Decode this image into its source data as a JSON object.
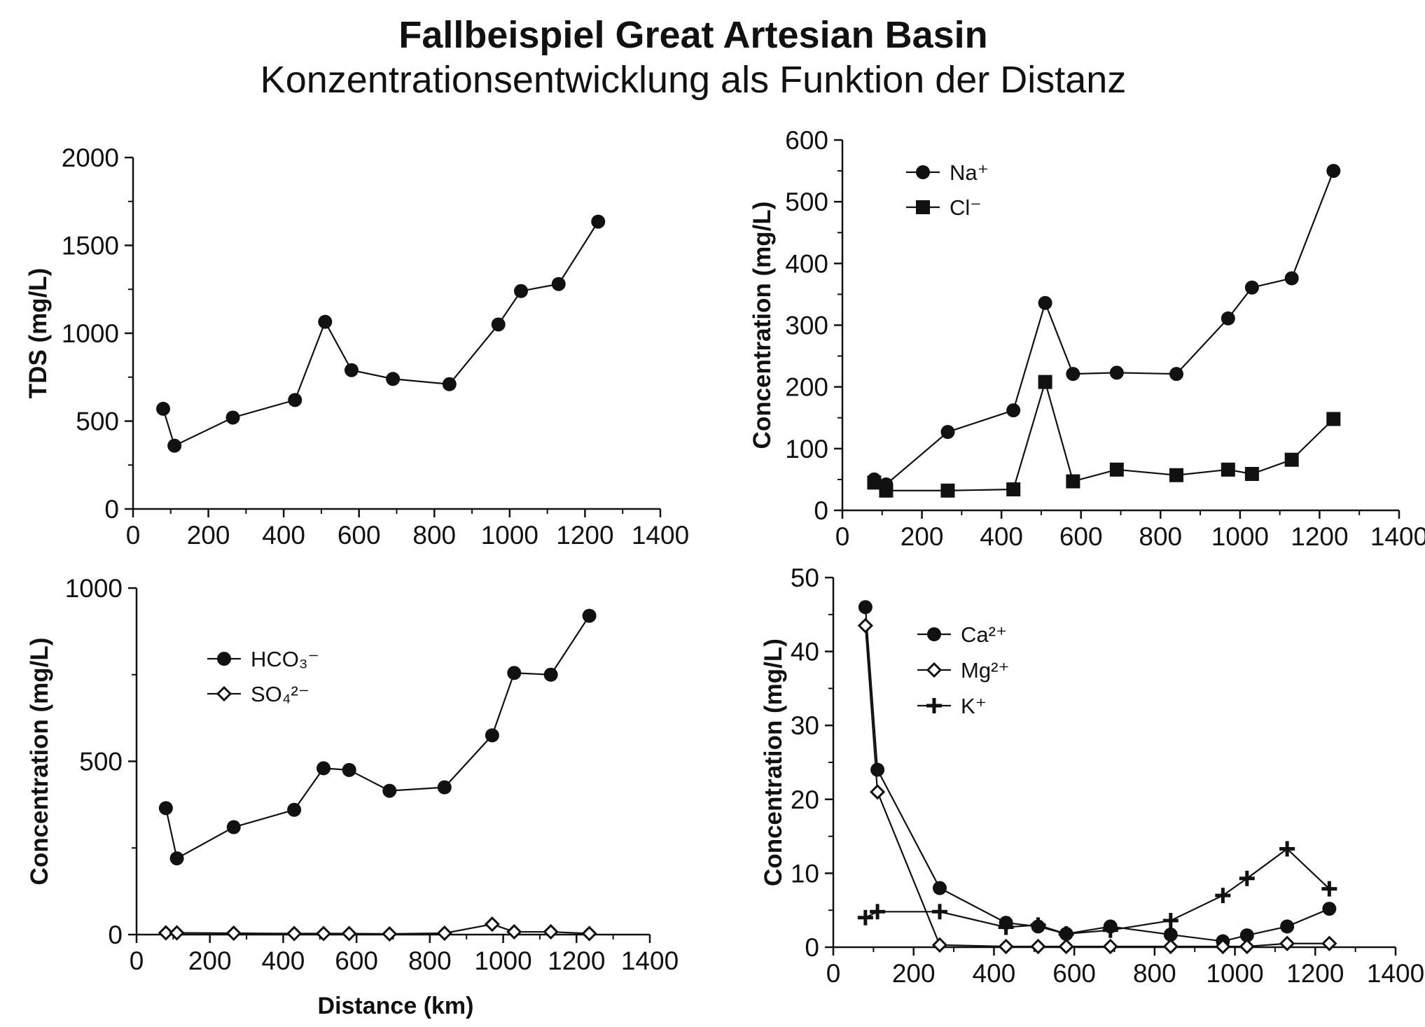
{
  "header": {
    "title": "Fallbeispiel Great Artesian Basin",
    "subtitle": "Konzentrationsentwicklung als Funktion der Distanz"
  },
  "chart_data": [
    {
      "id": "tds",
      "type": "line",
      "ylabel": "TDS (mg/L)",
      "xlabel": "",
      "xlim": [
        0,
        1400
      ],
      "ylim": [
        0,
        2000
      ],
      "xticks": [
        0,
        200,
        400,
        600,
        800,
        1000,
        1200,
        1400
      ],
      "yticks": [
        0,
        500,
        1000,
        1500,
        2000
      ],
      "legend": null,
      "series": [
        {
          "marker": "circle",
          "x": [
            80,
            110,
            265,
            430,
            510,
            580,
            690,
            840,
            970,
            1030,
            1130,
            1235
          ],
          "y": [
            570,
            360,
            520,
            620,
            1065,
            790,
            740,
            710,
            1050,
            1240,
            1280,
            1635
          ]
        }
      ]
    },
    {
      "id": "na-cl",
      "type": "line",
      "ylabel": "Concentration (mg/L)",
      "xlabel": "",
      "xlim": [
        0,
        1400
      ],
      "ylim": [
        0,
        600
      ],
      "xticks": [
        0,
        200,
        400,
        600,
        800,
        1000,
        1200,
        1400
      ],
      "yticks": [
        0,
        100,
        200,
        300,
        400,
        500,
        600
      ],
      "legend": "top-left",
      "series": [
        {
          "name": "Na⁺",
          "marker": "circle",
          "x": [
            80,
            110,
            265,
            430,
            510,
            580,
            690,
            840,
            970,
            1030,
            1130,
            1235
          ],
          "y": [
            50,
            42,
            127,
            162,
            336,
            221,
            223,
            221,
            311,
            361,
            376,
            550
          ]
        },
        {
          "name": "Cl⁻",
          "marker": "square",
          "x": [
            80,
            110,
            265,
            430,
            510,
            580,
            690,
            840,
            970,
            1030,
            1130,
            1235
          ],
          "y": [
            45,
            32,
            32,
            34,
            208,
            47,
            66,
            57,
            66,
            59,
            82,
            148
          ]
        }
      ]
    },
    {
      "id": "hco3-so4",
      "type": "line",
      "ylabel": "Concentration (mg/L)",
      "xlabel": "Distance (km)",
      "xlim": [
        0,
        1400
      ],
      "ylim": [
        0,
        1000
      ],
      "xticks": [
        0,
        200,
        400,
        600,
        800,
        1000,
        1200,
        1400
      ],
      "yticks": [
        0,
        500,
        1000
      ],
      "legend": "top-left",
      "series": [
        {
          "name": "HCO₃⁻",
          "marker": "circle",
          "x": [
            80,
            110,
            265,
            430,
            510,
            580,
            690,
            840,
            970,
            1030,
            1130,
            1235
          ],
          "y": [
            365,
            220,
            310,
            360,
            480,
            475,
            415,
            425,
            575,
            755,
            750,
            920
          ]
        },
        {
          "name": "SO₄²⁻",
          "marker": "diamond",
          "x": [
            80,
            110,
            265,
            430,
            510,
            580,
            690,
            840,
            970,
            1030,
            1130,
            1235
          ],
          "y": [
            5,
            5,
            4,
            3,
            3,
            3,
            2,
            4,
            30,
            8,
            8,
            3
          ]
        }
      ]
    },
    {
      "id": "ca-mg-k",
      "type": "line",
      "ylabel": "Concentration (mg/L)",
      "xlabel": "",
      "xlim": [
        0,
        1400
      ],
      "ylim": [
        0,
        50
      ],
      "xticks": [
        0,
        200,
        400,
        600,
        800,
        1000,
        1200,
        1400
      ],
      "yticks": [
        0,
        10,
        20,
        30,
        40,
        50
      ],
      "legend": "top-left",
      "series": [
        {
          "name": "Ca²⁺",
          "marker": "circle",
          "x": [
            80,
            110,
            265,
            430,
            510,
            580,
            690,
            840,
            970,
            1030,
            1130,
            1235
          ],
          "y": [
            46,
            24,
            8,
            3.3,
            2.8,
            1.8,
            2.8,
            1.7,
            0.8,
            1.6,
            2.8,
            5.2
          ]
        },
        {
          "name": "Mg²⁺",
          "marker": "diamond",
          "x": [
            80,
            110,
            265,
            430,
            510,
            580,
            690,
            840,
            970,
            1030,
            1130,
            1235
          ],
          "y": [
            43.5,
            21,
            0.3,
            0.1,
            0.1,
            0.1,
            0.1,
            0.1,
            0.1,
            0.1,
            0.5,
            0.5
          ]
        },
        {
          "name": "K⁺",
          "marker": "plus",
          "x": [
            80,
            110,
            265,
            430,
            510,
            580,
            690,
            840,
            970,
            1030,
            1130,
            1235
          ],
          "y": [
            4,
            4.8,
            4.8,
            2.7,
            3,
            1.8,
            2.3,
            3.6,
            7,
            9.3,
            13.3,
            7.9
          ]
        }
      ]
    }
  ]
}
